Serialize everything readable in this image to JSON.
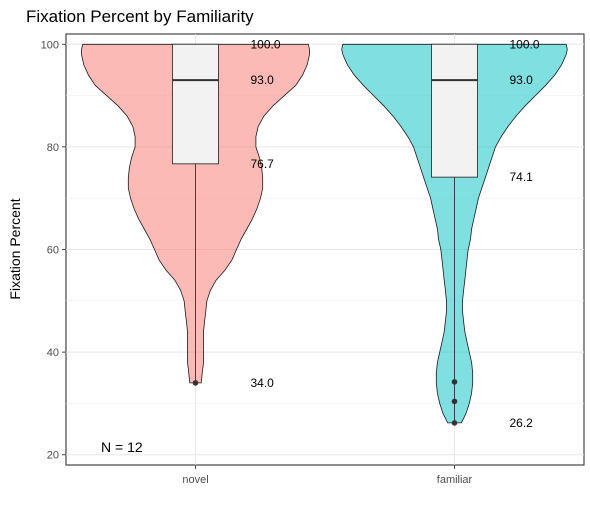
{
  "chart_data": {
    "type": "violin",
    "title": "Fixation Percent by Familiarity",
    "xlabel": "",
    "ylabel": "Fixation Percent",
    "ylim": [
      18,
      102
    ],
    "yticks": [
      20,
      40,
      60,
      80,
      100
    ],
    "grid": true,
    "legend": "none",
    "categories": [
      "novel",
      "familiar"
    ],
    "series": [
      {
        "category": "novel",
        "color": "#F8766D",
        "box": {
          "min": 34.0,
          "q1": 76.7,
          "median": 93.0,
          "q3": 100.0,
          "max": 100.0
        },
        "outliers": [
          34.0
        ],
        "labels": [
          {
            "text": "100.0",
            "value": 100.0
          },
          {
            "text": "93.0",
            "value": 93.0
          },
          {
            "text": "76.7",
            "value": 76.7
          },
          {
            "text": "34.0",
            "value": 34.0
          }
        ],
        "density": [
          [
            34.0,
            0.05
          ],
          [
            36.0,
            0.06
          ],
          [
            38.0,
            0.07
          ],
          [
            40.0,
            0.07
          ],
          [
            42.0,
            0.07
          ],
          [
            44.0,
            0.07
          ],
          [
            46.0,
            0.08
          ],
          [
            48.0,
            0.09
          ],
          [
            50.0,
            0.1
          ],
          [
            52.0,
            0.13
          ],
          [
            54.0,
            0.18
          ],
          [
            56.0,
            0.26
          ],
          [
            58.0,
            0.32
          ],
          [
            60.0,
            0.36
          ],
          [
            62.0,
            0.4
          ],
          [
            64.0,
            0.45
          ],
          [
            66.0,
            0.5
          ],
          [
            68.0,
            0.54
          ],
          [
            70.0,
            0.57
          ],
          [
            72.0,
            0.59
          ],
          [
            74.0,
            0.59
          ],
          [
            76.0,
            0.58
          ],
          [
            78.0,
            0.56
          ],
          [
            80.0,
            0.53
          ],
          [
            82.0,
            0.53
          ],
          [
            84.0,
            0.55
          ],
          [
            86.0,
            0.6
          ],
          [
            88.0,
            0.68
          ],
          [
            90.0,
            0.78
          ],
          [
            92.0,
            0.88
          ],
          [
            94.0,
            0.94
          ],
          [
            96.0,
            0.98
          ],
          [
            98.0,
            1.0
          ],
          [
            99.0,
            1.0
          ],
          [
            100.0,
            0.99
          ]
        ]
      },
      {
        "category": "familiar",
        "color": "#00BFC4",
        "box": {
          "min": 26.2,
          "q1": 74.1,
          "median": 93.0,
          "q3": 100.0,
          "max": 100.0
        },
        "outliers": [
          34.2,
          30.4,
          26.2
        ],
        "labels": [
          {
            "text": "100.0",
            "value": 100.0
          },
          {
            "text": "93.0",
            "value": 93.0
          },
          {
            "text": "74.1",
            "value": 74.1
          },
          {
            "text": "26.2",
            "value": 26.2
          }
        ],
        "density": [
          [
            26.2,
            0.06
          ],
          [
            28.0,
            0.1
          ],
          [
            30.0,
            0.13
          ],
          [
            32.0,
            0.15
          ],
          [
            34.0,
            0.16
          ],
          [
            36.0,
            0.16
          ],
          [
            38.0,
            0.15
          ],
          [
            40.0,
            0.13
          ],
          [
            42.0,
            0.11
          ],
          [
            44.0,
            0.09
          ],
          [
            46.0,
            0.08
          ],
          [
            48.0,
            0.07
          ],
          [
            50.0,
            0.07
          ],
          [
            52.0,
            0.08
          ],
          [
            54.0,
            0.09
          ],
          [
            56.0,
            0.1
          ],
          [
            58.0,
            0.11
          ],
          [
            60.0,
            0.12
          ],
          [
            62.0,
            0.14
          ],
          [
            64.0,
            0.15
          ],
          [
            66.0,
            0.17
          ],
          [
            68.0,
            0.19
          ],
          [
            70.0,
            0.21
          ],
          [
            72.0,
            0.24
          ],
          [
            74.0,
            0.27
          ],
          [
            76.0,
            0.3
          ],
          [
            78.0,
            0.33
          ],
          [
            80.0,
            0.36
          ],
          [
            82.0,
            0.41
          ],
          [
            84.0,
            0.47
          ],
          [
            86.0,
            0.54
          ],
          [
            88.0,
            0.62
          ],
          [
            90.0,
            0.71
          ],
          [
            92.0,
            0.8
          ],
          [
            94.0,
            0.88
          ],
          [
            96.0,
            0.94
          ],
          [
            98.0,
            0.98
          ],
          [
            99.0,
            0.99
          ],
          [
            100.0,
            0.98
          ]
        ]
      }
    ],
    "annotation": "N =  12"
  }
}
